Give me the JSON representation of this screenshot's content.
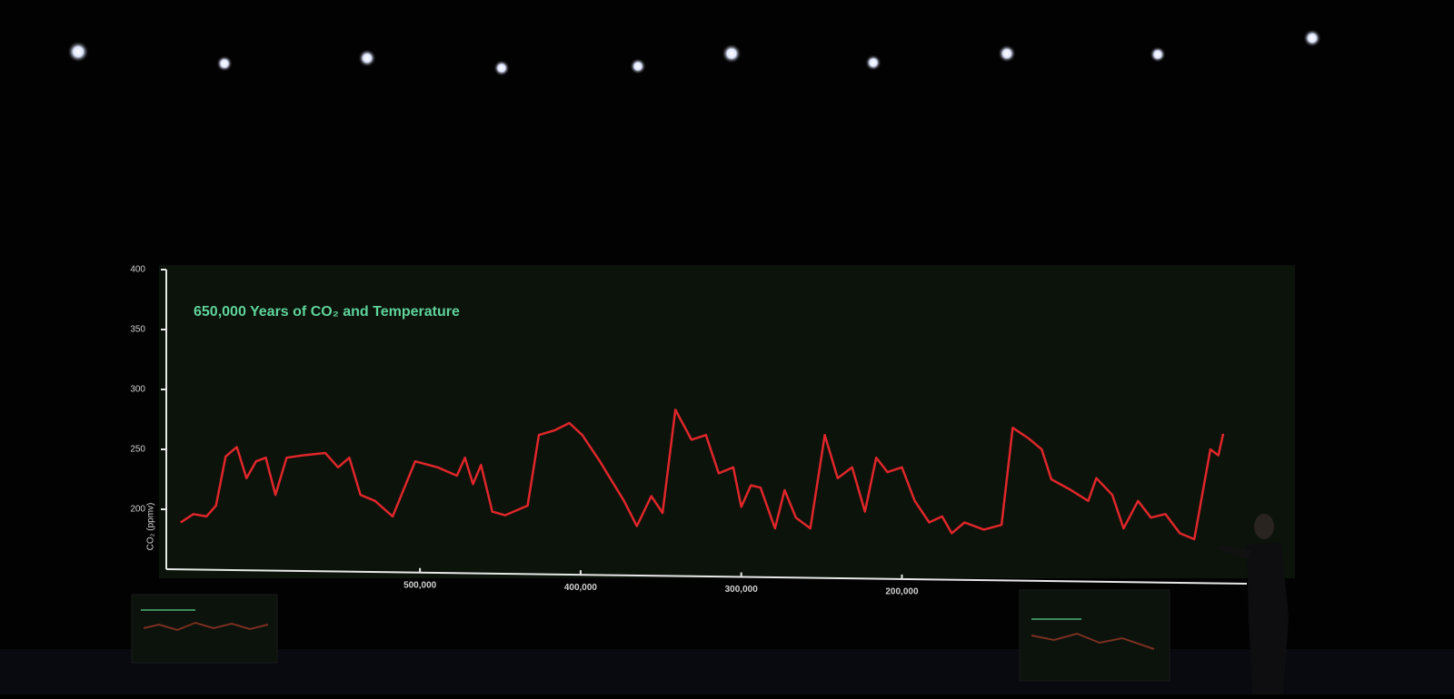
{
  "chart_data": {
    "type": "line",
    "title": "650,000 Years of CO₂ and Temperature",
    "y_label": "CO₂ (ppmv)",
    "xlim": [
      650000,
      0
    ],
    "xticks": [
      {
        "value": 500000,
        "label": "500,000"
      },
      {
        "value": 400000,
        "label": "400,000"
      },
      {
        "value": 300000,
        "label": "300,000"
      },
      {
        "value": 200000,
        "label": "200,000"
      }
    ],
    "ylim": [
      150,
      400
    ],
    "yticks": [
      400,
      350,
      300,
      250,
      200
    ],
    "grid": false,
    "series": [
      {
        "name": "CO₂",
        "color": "#e0262a",
        "x": [
          649000,
          641000,
          633000,
          627000,
          621000,
          614000,
          608000,
          602000,
          596000,
          590000,
          583000,
          573000,
          559000,
          551000,
          544000,
          537000,
          528000,
          517000,
          503000,
          489000,
          477000,
          472000,
          467000,
          462000,
          455000,
          447000,
          433000,
          426000,
          416000,
          407000,
          399000,
          388000,
          373000,
          365000,
          356000,
          349000,
          341000,
          331000,
          322000,
          314000,
          305000,
          300000,
          294000,
          288000,
          279000,
          273000,
          266000,
          257000,
          248000,
          240000,
          231000,
          223000,
          216000,
          209000,
          200000,
          192000,
          183000,
          175000,
          169000,
          161000,
          149000,
          138000,
          131000,
          121000,
          113000,
          107000,
          96000,
          84000,
          79000,
          69000,
          62000,
          53000,
          45000,
          36000,
          27000,
          18000,
          8000,
          3000,
          0
        ],
        "values": [
          189,
          196,
          194,
          203,
          244,
          252,
          226,
          240,
          243,
          212,
          243,
          245,
          247,
          235,
          243,
          212,
          207,
          194,
          240,
          235,
          228,
          243,
          221,
          237,
          198,
          195,
          203,
          262,
          266,
          272,
          262,
          240,
          207,
          186,
          211,
          197,
          283,
          258,
          262,
          230,
          235,
          202,
          220,
          218,
          184,
          216,
          193,
          184,
          262,
          226,
          235,
          198,
          243,
          231,
          235,
          207,
          189,
          194,
          180,
          189,
          183,
          187,
          268,
          259,
          250,
          225,
          217,
          207,
          226,
          212,
          184,
          207,
          193,
          196,
          180,
          175,
          250,
          245,
          263
        ]
      }
    ]
  }
}
